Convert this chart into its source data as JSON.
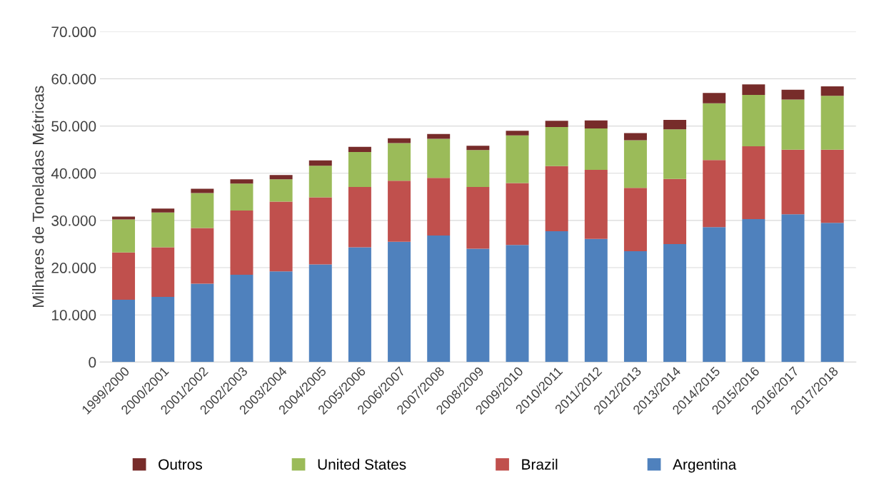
{
  "chart_data": {
    "type": "bar",
    "stacked": true,
    "ylabel": "Milhares de Toneladas Métricas",
    "categories": [
      "1999/2000",
      "2000/2001",
      "2001/2002",
      "2002/2003",
      "2003/2004",
      "2004/2005",
      "2005/2006",
      "2006/2007",
      "2007/2008",
      "2008/2009",
      "2009/2010",
      "2010/2011",
      "2011/2012",
      "2012/2013",
      "2013/2014",
      "2014/2015",
      "2015/2016",
      "2016/2017",
      "2017/2018"
    ],
    "series": [
      {
        "name": "Argentina",
        "color": "#4f81bd",
        "values": [
          13200,
          13800,
          16600,
          18500,
          19200,
          20700,
          24300,
          25500,
          26800,
          24000,
          24800,
          27700,
          26100,
          23500,
          25000,
          28600,
          30300,
          31300,
          29500
        ]
      },
      {
        "name": "Brazil",
        "color": "#c0504d",
        "values": [
          10000,
          10500,
          11800,
          13600,
          14800,
          14200,
          12800,
          12900,
          12200,
          13100,
          13100,
          13800,
          14600,
          13400,
          13800,
          14200,
          15400,
          13700,
          15500
        ]
      },
      {
        "name": "United States",
        "color": "#9bbb59",
        "values": [
          7000,
          7400,
          7400,
          5700,
          4700,
          6700,
          7400,
          8000,
          8300,
          7800,
          10100,
          8300,
          8800,
          10100,
          10500,
          12000,
          10900,
          10600,
          11400
        ]
      },
      {
        "name": "Outros",
        "color": "#772c2a",
        "values": [
          600,
          800,
          900,
          900,
          900,
          1100,
          1100,
          1000,
          1000,
          900,
          1000,
          1300,
          1700,
          1500,
          2000,
          2200,
          2200,
          2100,
          2000
        ]
      }
    ],
    "ylim": [
      0,
      70000
    ],
    "yticks": [
      0,
      {
        "value": 10000,
        "label": "10.000"
      },
      {
        "value": 20000,
        "label": "20.000"
      },
      {
        "value": 30000,
        "label": "30.000"
      },
      {
        "value": 40000,
        "label": "40.000"
      },
      {
        "value": 50000,
        "label": "50.000"
      },
      {
        "value": 60000,
        "label": "60.000"
      },
      {
        "value": 70000,
        "label": "70.000"
      }
    ],
    "grid": "y",
    "legend": "bottom"
  }
}
